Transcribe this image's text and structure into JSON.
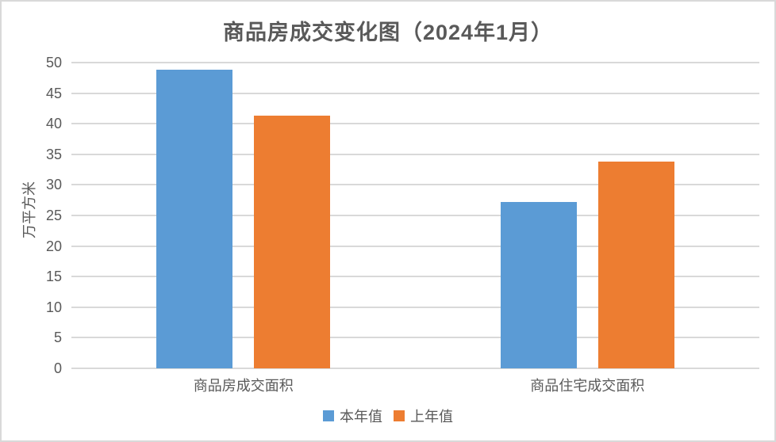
{
  "chart_data": {
    "type": "bar",
    "title": "商品房成交变化图（2024年1月）",
    "ylabel": "万平方米",
    "xlabel": "",
    "categories": [
      "商品房成交面积",
      "商品住宅成交面积"
    ],
    "series": [
      {
        "name": "本年值",
        "color": "#5b9bd5",
        "values": [
          48.8,
          27.2
        ]
      },
      {
        "name": "上年值",
        "color": "#ed7d31",
        "values": [
          41.3,
          33.8
        ]
      }
    ],
    "ylim": [
      0,
      50
    ],
    "yticks": [
      0,
      5,
      10,
      15,
      20,
      25,
      30,
      35,
      40,
      45,
      50
    ],
    "grid": true,
    "legend_position": "bottom"
  },
  "style": {
    "gridline_color": "#d9d9d9",
    "text_color": "#595959",
    "background_color": "#ffffff",
    "border_color": "#d9d9d9"
  }
}
